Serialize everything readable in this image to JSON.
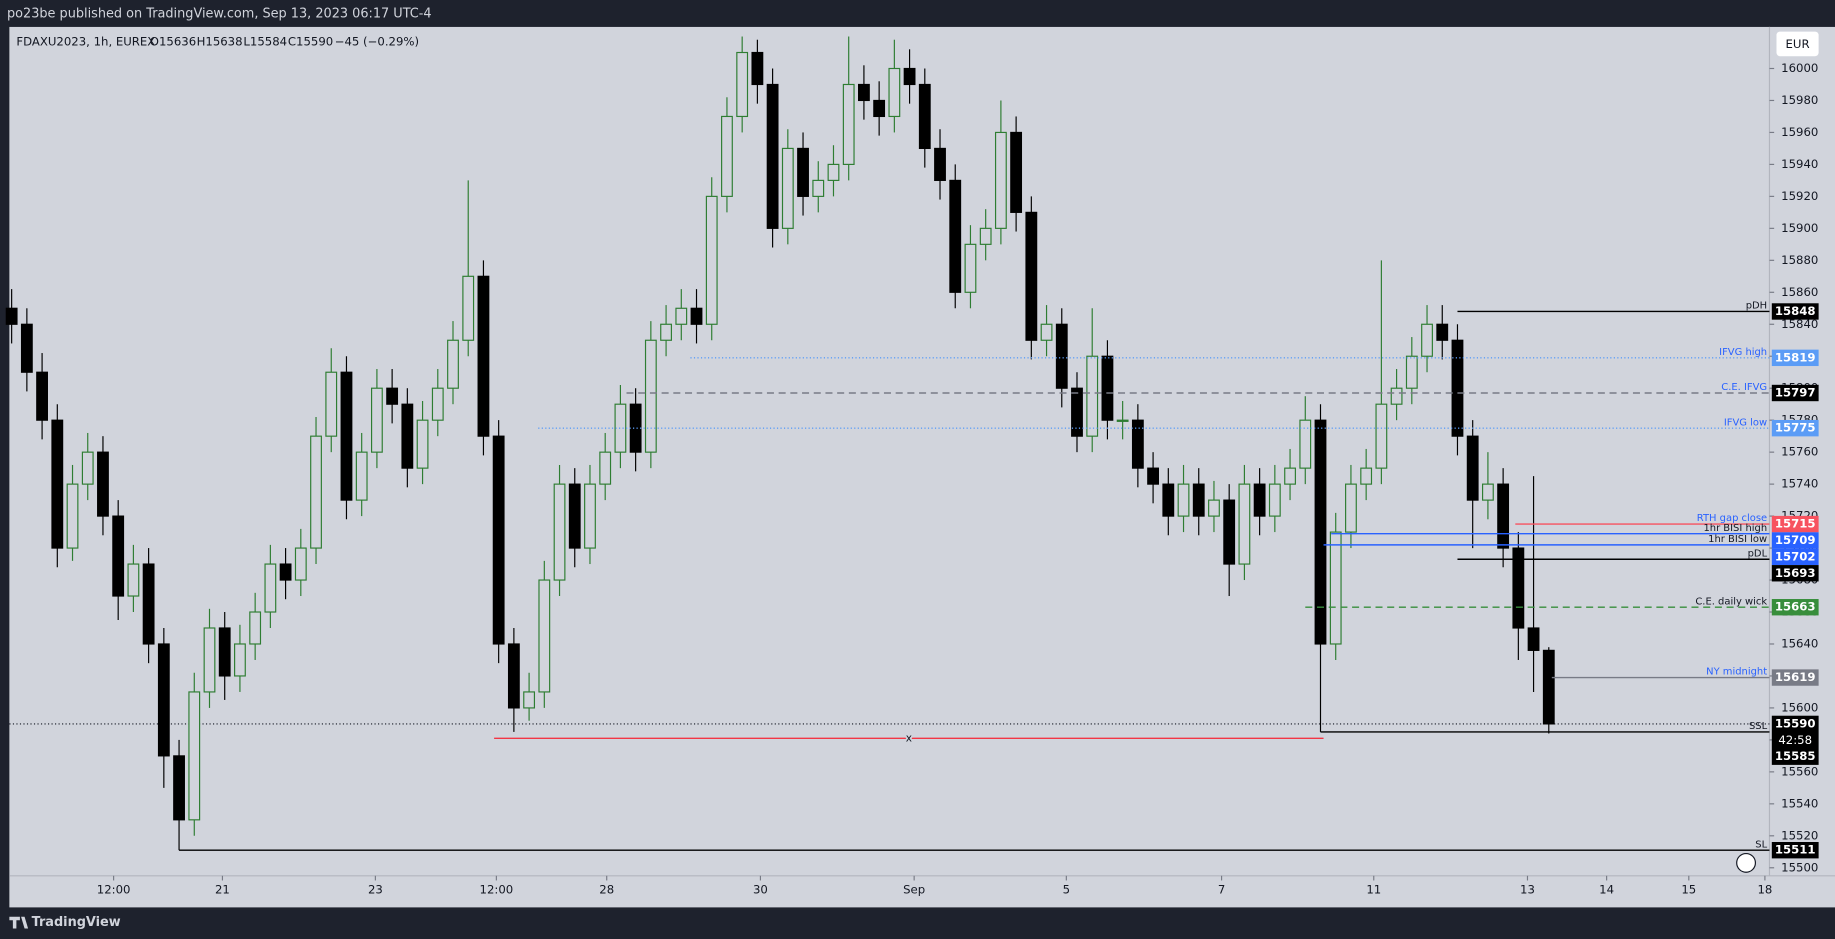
{
  "header": {
    "published": "po23be published on TradingView.com, Sep 13, 2023 06:17 UTC-4"
  },
  "footer": {
    "brand": "TradingView"
  },
  "chart_data": {
    "type": "candlestick",
    "legend": {
      "symbol": "FDAXU2023, 1h, EUREX",
      "open": "O15636",
      "high": "H15638",
      "low": "L15584",
      "close": "C15590",
      "change": "−45 (−0.29%)"
    },
    "currency": "EUR",
    "open": [
      15850,
      15840,
      15810,
      15780,
      15700,
      15740,
      15760,
      15720,
      15670,
      15690,
      15640,
      15570,
      15530,
      15610,
      15650,
      15620,
      15640,
      15660,
      15690,
      15680,
      15700,
      15770,
      15810,
      15730,
      15760,
      15800,
      15790,
      15750,
      15780,
      15800,
      15830,
      15870,
      15770,
      15640,
      15600,
      15610,
      15680,
      15740,
      15700,
      15740,
      15760,
      15790,
      15760,
      15830,
      15840,
      15850,
      15840,
      15920,
      15970,
      16010,
      15990,
      15900,
      15950,
      15920,
      15930,
      15940,
      15990,
      15980,
      15970,
      16000,
      15990,
      15950,
      15930,
      15860,
      15890,
      15900,
      15960,
      15910,
      15830,
      15840,
      15800,
      15770,
      15820,
      15780,
      15780,
      15750,
      15740,
      15720,
      15740,
      15720,
      15730,
      15690,
      15740,
      15720,
      15740,
      15750,
      15780,
      15640,
      15710,
      15740,
      15750,
      15790,
      15800,
      15820,
      15840,
      15830,
      15770,
      15730,
      15740,
      15700,
      15650,
      15636
    ],
    "high": [
      15862,
      15850,
      15822,
      15790,
      15752,
      15772,
      15770,
      15730,
      15702,
      15700,
      15650,
      15580,
      15622,
      15662,
      15660,
      15652,
      15672,
      15702,
      15700,
      15712,
      15782,
      15825,
      15820,
      15772,
      15812,
      15812,
      15800,
      15792,
      15812,
      15842,
      15930,
      15880,
      15780,
      15650,
      15622,
      15692,
      15752,
      15750,
      15752,
      15772,
      15802,
      15800,
      15842,
      15852,
      15862,
      15862,
      15932,
      15982,
      16020,
      16018,
      16000,
      15962,
      15960,
      15942,
      15952,
      16020,
      16002,
      15992,
      16018,
      16012,
      16000,
      15962,
      15940,
      15902,
      15912,
      15980,
      15970,
      15920,
      15852,
      15850,
      15810,
      15850,
      15830,
      15792,
      15790,
      15760,
      15750,
      15752,
      15750,
      15742,
      15740,
      15752,
      15750,
      15752,
      15762,
      15795,
      15790,
      15722,
      15752,
      15762,
      15880,
      15812,
      15832,
      15852,
      15852,
      15840,
      15780,
      15760,
      15750,
      15710,
      15745,
      15638
    ],
    "low": [
      15828,
      15798,
      15768,
      15688,
      15692,
      15730,
      15708,
      15655,
      15660,
      15628,
      15550,
      15511,
      15520,
      15600,
      15605,
      15610,
      15630,
      15650,
      15668,
      15670,
      15690,
      15760,
      15718,
      15720,
      15750,
      15778,
      15738,
      15740,
      15770,
      15790,
      15820,
      15758,
      15628,
      15585,
      15592,
      15600,
      15670,
      15688,
      15690,
      15730,
      15750,
      15748,
      15750,
      15820,
      15830,
      15828,
      15830,
      15910,
      15960,
      15978,
      15888,
      15890,
      15908,
      15910,
      15920,
      15930,
      15968,
      15958,
      15960,
      15978,
      15938,
      15918,
      15850,
      15850,
      15880,
      15890,
      15898,
      15818,
      15820,
      15788,
      15760,
      15760,
      15768,
      15768,
      15738,
      15728,
      15708,
      15710,
      15708,
      15710,
      15670,
      15680,
      15708,
      15710,
      15730,
      15740,
      15585,
      15630,
      15700,
      15730,
      15740,
      15780,
      15790,
      15810,
      15818,
      15758,
      15700,
      15718,
      15688,
      15630,
      15610,
      15584
    ],
    "close": [
      15840,
      15810,
      15780,
      15700,
      15740,
      15760,
      15720,
      15670,
      15690,
      15640,
      15570,
      15530,
      15610,
      15650,
      15620,
      15640,
      15660,
      15690,
      15680,
      15700,
      15770,
      15810,
      15730,
      15760,
      15800,
      15790,
      15750,
      15780,
      15800,
      15830,
      15870,
      15770,
      15640,
      15600,
      15610,
      15680,
      15740,
      15700,
      15740,
      15760,
      15790,
      15760,
      15830,
      15840,
      15850,
      15840,
      15920,
      15970,
      16010,
      15990,
      15900,
      15950,
      15920,
      15930,
      15940,
      15990,
      15980,
      15970,
      16000,
      15990,
      15950,
      15930,
      15860,
      15890,
      15900,
      15960,
      15910,
      15830,
      15840,
      15800,
      15770,
      15820,
      15780,
      15780,
      15750,
      15740,
      15720,
      15740,
      15720,
      15730,
      15690,
      15740,
      15720,
      15740,
      15750,
      15780,
      15640,
      15710,
      15740,
      15750,
      15790,
      15800,
      15820,
      15840,
      15830,
      15770,
      15730,
      15740,
      15700,
      15650,
      15636,
      15590
    ],
    "up_color": "#2e7d32",
    "down_color": "#000000",
    "xlim": [
      -0.15,
      115.5
    ],
    "xticks": [
      {
        "value": 6.7,
        "label": "12:00"
      },
      {
        "value": 13.85,
        "label": "21"
      },
      {
        "value": 23.9,
        "label": "23"
      },
      {
        "value": 31.85,
        "label": "12:00"
      },
      {
        "value": 39.1,
        "label": "28"
      },
      {
        "value": 49.2,
        "label": "30"
      },
      {
        "value": 59.3,
        "label": "Sep"
      },
      {
        "value": 69.3,
        "label": "5"
      },
      {
        "value": 79.5,
        "label": "7"
      },
      {
        "value": 89.5,
        "label": "11"
      },
      {
        "value": 99.6,
        "label": "13"
      },
      {
        "value": 104.8,
        "label": "14"
      },
      {
        "value": 110.2,
        "label": "15"
      },
      {
        "value": 115.2,
        "label": "18"
      }
    ],
    "ylim": [
      15495,
      16026
    ],
    "yticks": [
      15500,
      15520,
      15540,
      15560,
      15580,
      15600,
      15620,
      15640,
      15660,
      15680,
      15700,
      15720,
      15740,
      15760,
      15780,
      15800,
      15820,
      15840,
      15860,
      15880,
      15900,
      15920,
      15940,
      15960,
      15980,
      16000
    ],
    "last_price": 15590,
    "countdown": "42:58",
    "levels": [
      {
        "label": "pDH",
        "price": 15848,
        "from": 95,
        "style": "solid",
        "line_color": "#000000",
        "text_color": "#131722",
        "box_color": "#000000"
      },
      {
        "label": "IFVG high",
        "price": 15819,
        "from": 44.6,
        "style": "dotted",
        "line_color": "#5b9cf6",
        "text_color": "#2962ff",
        "box_color": "#5b9cf6"
      },
      {
        "label": "C.E. IFVG",
        "price": 15797,
        "from": 40.4,
        "style": "dashed",
        "line_color": "#787b86",
        "text_color": "#2962ff",
        "box_color": "#000000"
      },
      {
        "label": "IFVG low",
        "price": 15775,
        "from": 34.6,
        "style": "dotted",
        "line_color": "#5b9cf6",
        "text_color": "#2962ff",
        "box_color": "#5b9cf6"
      },
      {
        "label": "RTH gap close",
        "price": 15715,
        "from": 98.8,
        "style": "solid",
        "line_color": "#f7525f",
        "text_color": "#2962ff",
        "box_color": "#f7525f"
      },
      {
        "label": "1hr BISI high",
        "price": 15709,
        "from": 86.7,
        "style": "solid",
        "line_color": "#2962ff",
        "text_color": "#131722",
        "box_color": "#2962ff"
      },
      {
        "label": "1hr BISI low",
        "price": 15702,
        "from": 86.2,
        "style": "solid",
        "line_color": "#2962ff",
        "text_color": "#131722",
        "box_color": "#2962ff"
      },
      {
        "label": "pDL",
        "price": 15693,
        "from": 95,
        "style": "solid",
        "line_color": "#000000",
        "text_color": "#131722",
        "box_color": "#000000"
      },
      {
        "label": "C.E. daily wick",
        "price": 15663,
        "from": 85,
        "style": "dashed",
        "line_color": "#388e3c",
        "text_color": "#131722",
        "box_color": "#388e3c"
      },
      {
        "label": "NY midnight",
        "price": 15619,
        "from": 101.2,
        "style": "solid",
        "line_color": "#787b86",
        "text_color": "#2962ff",
        "box_color": "#787b86"
      },
      {
        "label": "SSL",
        "price": 15585,
        "from": 86,
        "style": "solid",
        "line_color": "#000000",
        "text_color": "#131722",
        "box_color": "#000000"
      },
      {
        "label": "SL",
        "price": 15511,
        "from": 11,
        "style": "solid",
        "line_color": "#000000",
        "text_color": "#131722",
        "box_color": "#000000"
      },
      {
        "label": "x",
        "price": 15581,
        "from": 31.7,
        "to": 86.2,
        "style": "solid",
        "line_color": "#f23645",
        "text_color": "#131722"
      }
    ]
  }
}
